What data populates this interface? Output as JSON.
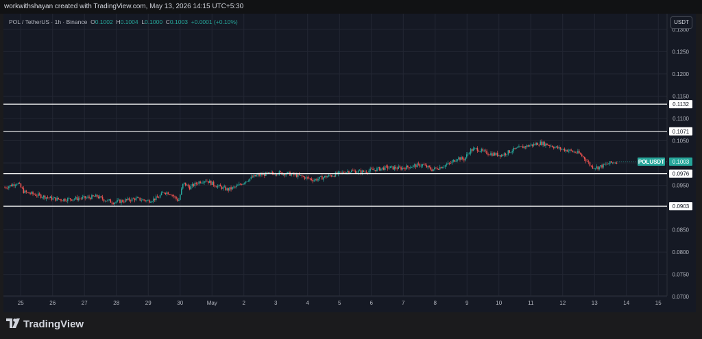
{
  "header": {
    "watermark": "workwithshayan created with TradingView.com, May 13, 2026 14:15 UTC+5:30"
  },
  "legend": {
    "symbol": "POL / TetherUS · 1h · Binance",
    "o_label": "O",
    "o": "0.1002",
    "h_label": "H",
    "h": "0.1004",
    "l_label": "L",
    "l": "0.1000",
    "c_label": "C",
    "c": "0.1003",
    "change": "+0.0001 (+0.10%)"
  },
  "currency": "USDT",
  "footer": {
    "brand": "TradingView"
  },
  "colors": {
    "background": "#151924",
    "grid": "#232733",
    "up": "#26a69a",
    "down": "#ef5350",
    "level_line": "#ffffff",
    "price_tag": "#26a69a"
  },
  "chart_data": {
    "type": "candlestick",
    "symbol_tag": "POLUSDT",
    "last_price": 0.1003,
    "ylim": [
      0.0665,
      0.1335
    ],
    "y_ticks": [
      "0.1300",
      "0.1250",
      "0.1200",
      "0.1150",
      "0.1100",
      "0.1050",
      "0.1000",
      "0.0950",
      "0.0900",
      "0.0850",
      "0.0800",
      "0.0750",
      "0.0700"
    ],
    "x_ticks": [
      {
        "label": "25",
        "t": 0.5
      },
      {
        "label": "26",
        "t": 1.5
      },
      {
        "label": "27",
        "t": 2.5
      },
      {
        "label": "28",
        "t": 3.5
      },
      {
        "label": "29",
        "t": 4.5
      },
      {
        "label": "30",
        "t": 5.5
      },
      {
        "label": "May",
        "t": 6.5
      },
      {
        "label": "2",
        "t": 7.5
      },
      {
        "label": "3",
        "t": 8.5
      },
      {
        "label": "4",
        "t": 9.5
      },
      {
        "label": "5",
        "t": 10.5
      },
      {
        "label": "6",
        "t": 11.5
      },
      {
        "label": "7",
        "t": 12.5
      },
      {
        "label": "8",
        "t": 13.5
      },
      {
        "label": "9",
        "t": 14.5
      },
      {
        "label": "10",
        "t": 15.5
      },
      {
        "label": "11",
        "t": 16.5
      },
      {
        "label": "12",
        "t": 17.5
      },
      {
        "label": "13",
        "t": 18.5
      },
      {
        "label": "14",
        "t": 19.5
      },
      {
        "label": "15",
        "t": 20.5
      }
    ],
    "levels": [
      {
        "value": 0.1132,
        "label": "0.1132"
      },
      {
        "value": 0.1071,
        "label": "0.1071"
      },
      {
        "value": 0.0976,
        "label": "0.0976"
      },
      {
        "value": 0.0903,
        "label": "0.0903"
      }
    ],
    "price_path": [
      [
        0.0,
        0.0945
      ],
      [
        0.2,
        0.095
      ],
      [
        0.4,
        0.0956
      ],
      [
        0.6,
        0.0935
      ],
      [
        0.9,
        0.093
      ],
      [
        1.2,
        0.0925
      ],
      [
        1.5,
        0.092
      ],
      [
        1.8,
        0.0918
      ],
      [
        2.2,
        0.092
      ],
      [
        2.6,
        0.0922
      ],
      [
        2.9,
        0.0925
      ],
      [
        3.1,
        0.0918
      ],
      [
        3.4,
        0.0912
      ],
      [
        3.8,
        0.0916
      ],
      [
        4.1,
        0.092
      ],
      [
        4.5,
        0.0915
      ],
      [
        4.8,
        0.0922
      ],
      [
        5.0,
        0.0935
      ],
      [
        5.2,
        0.0932
      ],
      [
        5.45,
        0.0915
      ],
      [
        5.6,
        0.0955
      ],
      [
        5.8,
        0.0945
      ],
      [
        6.1,
        0.0958
      ],
      [
        6.3,
        0.0962
      ],
      [
        6.6,
        0.095
      ],
      [
        7.0,
        0.094
      ],
      [
        7.3,
        0.0948
      ],
      [
        7.6,
        0.0962
      ],
      [
        7.9,
        0.0972
      ],
      [
        8.2,
        0.0975
      ],
      [
        8.5,
        0.0978
      ],
      [
        8.9,
        0.0976
      ],
      [
        9.3,
        0.097
      ],
      [
        9.7,
        0.0962
      ],
      [
        10.0,
        0.0968
      ],
      [
        10.4,
        0.0975
      ],
      [
        10.8,
        0.0982
      ],
      [
        11.2,
        0.098
      ],
      [
        11.6,
        0.0985
      ],
      [
        12.0,
        0.099
      ],
      [
        12.4,
        0.0988
      ],
      [
        12.8,
        0.0993
      ],
      [
        13.1,
        0.0996
      ],
      [
        13.4,
        0.0985
      ],
      [
        13.7,
        0.0992
      ],
      [
        14.0,
        0.1
      ],
      [
        14.2,
        0.1012
      ],
      [
        14.4,
        0.1008
      ],
      [
        14.6,
        0.1028
      ],
      [
        14.8,
        0.1032
      ],
      [
        15.0,
        0.1025
      ],
      [
        15.3,
        0.102
      ],
      [
        15.6,
        0.1018
      ],
      [
        15.9,
        0.1028
      ],
      [
        16.2,
        0.1035
      ],
      [
        16.5,
        0.104
      ],
      [
        16.8,
        0.1045
      ],
      [
        17.1,
        0.104
      ],
      [
        17.4,
        0.1032
      ],
      [
        17.7,
        0.1028
      ],
      [
        18.0,
        0.1022
      ],
      [
        18.2,
        0.101
      ],
      [
        18.4,
        0.0992
      ],
      [
        18.6,
        0.099
      ],
      [
        18.8,
        0.0995
      ],
      [
        19.0,
        0.1
      ],
      [
        19.2,
        0.1003
      ]
    ]
  }
}
